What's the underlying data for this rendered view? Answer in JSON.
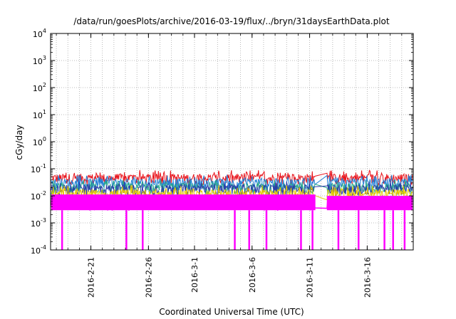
{
  "chart_data": {
    "type": "line",
    "title": "/data/run/goesPlots/archive/2016-03-19/flux/../bryn/31daysEarthData.plot",
    "xlabel": "Coordinated Universal Time (UTC)",
    "ylabel": "cGy/day",
    "yscale": "log",
    "ylim": [
      0.0001,
      10000
    ],
    "xlim": [
      "2016-02-17T12:00",
      "2016-03-20"
    ],
    "grid": true,
    "y_ticks": [
      {
        "base": "10",
        "exp": "-4"
      },
      {
        "base": "10",
        "exp": "-3"
      },
      {
        "base": "10",
        "exp": "-2"
      },
      {
        "base": "10",
        "exp": "-1"
      },
      {
        "base": "10",
        "exp": "0"
      },
      {
        "base": "10",
        "exp": "1"
      },
      {
        "base": "10",
        "exp": "2"
      },
      {
        "base": "10",
        "exp": "3"
      },
      {
        "base": "10",
        "exp": "4"
      }
    ],
    "x_ticks": [
      "2016-2-21",
      "2016-2-26",
      "2016-3-1",
      "2016-3-6",
      "2016-3-11",
      "2016-3-16"
    ],
    "data_gap": [
      "2016-03-11T12:00",
      "2016-03-12T12:00"
    ],
    "series": [
      {
        "color": "#e8141c",
        "values": {
          "baseline": 0.045,
          "peaks_to": 0.09
        }
      },
      {
        "color": "#1f7fd6",
        "values": {
          "baseline": 0.03,
          "peaks_to": 0.06
        }
      },
      {
        "color": "#27a78a",
        "values": {
          "baseline": 0.02,
          "peaks_to": 0.04
        }
      },
      {
        "color": "#2a3aa8",
        "values": {
          "baseline": 0.018,
          "peaks_to": 0.035
        }
      },
      {
        "color": "#e6c800",
        "values": {
          "baseline": 0.012,
          "peaks_to": 0.025
        }
      },
      {
        "color": "#ff00ff",
        "values": {
          "baseline": 0.007,
          "dips_to": 0.0001
        }
      }
    ],
    "magenta_dropouts": [
      "2016-02-18T12:00",
      "2016-02-24T02:00",
      "2016-02-25T12:00",
      "2016-03-04T12:00",
      "2016-03-05T18:00",
      "2016-03-07T06:00",
      "2016-03-10T06:00",
      "2016-03-11T06:00",
      "2016-03-13T12:00",
      "2016-03-15T06:00",
      "2016-03-17T12:00",
      "2016-03-18T06:00",
      "2016-03-19T06:00"
    ]
  }
}
